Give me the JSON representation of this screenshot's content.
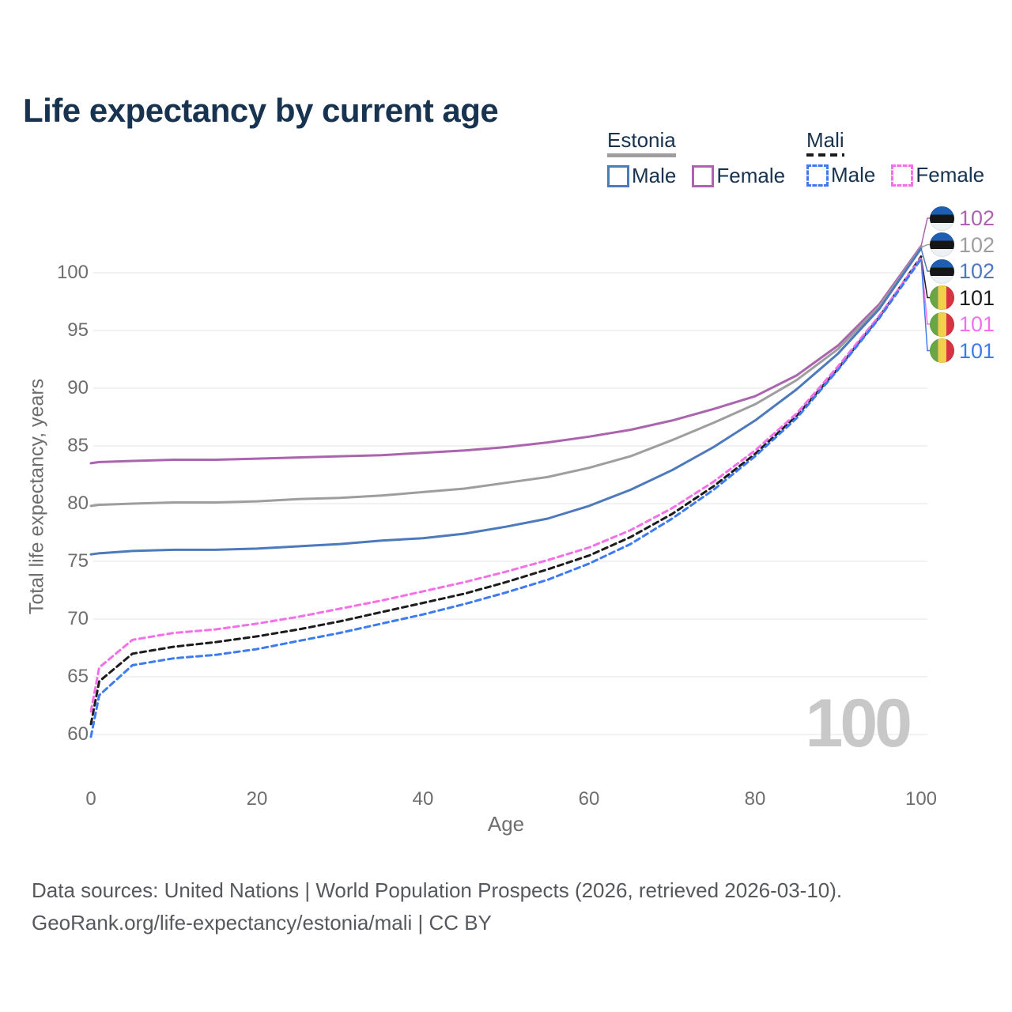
{
  "title": "Life expectancy by current age",
  "watermark": "100",
  "legend": {
    "groups": [
      {
        "country": "Estonia",
        "items": [
          {
            "label": "Male"
          },
          {
            "label": "Female"
          }
        ]
      },
      {
        "country": "Mali",
        "items": [
          {
            "label": "Male"
          },
          {
            "label": "Female"
          }
        ]
      }
    ]
  },
  "footer": {
    "line1": "Data sources: United Nations | World Population Prospects (2026, retrieved 2026-03-10).",
    "line2": "GeoRank.org/life-expectancy/estonia/mali | CC BY"
  },
  "colors": {
    "title": "#17334f",
    "axis_text": "#6e6e6e",
    "grid": "#e9e9e9",
    "watermark": "#c8c8c8",
    "footer_text": "#55595e"
  },
  "chart_data": {
    "type": "line",
    "title": "Life expectancy by current age",
    "xlabel": "Age",
    "ylabel": "Total life expectancy, years",
    "xlim": [
      0,
      100
    ],
    "ylim": [
      59,
      103
    ],
    "xticks": [
      0,
      20,
      40,
      60,
      80,
      100
    ],
    "yticks": [
      60,
      65,
      70,
      75,
      80,
      85,
      90,
      95,
      100
    ],
    "grid": "horizontal",
    "legend_position": "top-right",
    "x_ages": [
      0,
      1,
      5,
      10,
      15,
      20,
      25,
      30,
      35,
      40,
      45,
      50,
      55,
      60,
      65,
      70,
      75,
      80,
      85,
      90,
      95,
      100
    ],
    "series": [
      {
        "id": "estonia-female",
        "name": "Estonia Female",
        "country": "Estonia",
        "sex": "Female",
        "color": "#ab64ae",
        "dashed": false,
        "flag": "estonia",
        "end_label": "102",
        "values": [
          83.5,
          83.6,
          83.7,
          83.8,
          83.8,
          83.9,
          84.0,
          84.1,
          84.2,
          84.4,
          84.6,
          84.9,
          85.3,
          85.8,
          86.4,
          87.2,
          88.2,
          89.3,
          91.1,
          93.7,
          97.3,
          102.3
        ]
      },
      {
        "id": "estonia-total",
        "name": "Estonia Both sexes",
        "country": "Estonia",
        "sex": "All",
        "color": "#9e9e9e",
        "dashed": false,
        "flag": "estonia",
        "end_label": "102",
        "values": [
          79.8,
          79.9,
          80.0,
          80.1,
          80.1,
          80.2,
          80.4,
          80.5,
          80.7,
          81.0,
          81.3,
          81.8,
          82.3,
          83.1,
          84.1,
          85.5,
          87.0,
          88.6,
          90.7,
          93.4,
          97.1,
          102.2
        ]
      },
      {
        "id": "estonia-male",
        "name": "Estonia Male",
        "country": "Estonia",
        "sex": "Male",
        "color": "#4d79bd",
        "dashed": false,
        "flag": "estonia",
        "end_label": "102",
        "values": [
          75.6,
          75.7,
          75.9,
          76.0,
          76.0,
          76.1,
          76.3,
          76.5,
          76.8,
          77.0,
          77.4,
          78.0,
          78.7,
          79.8,
          81.2,
          82.9,
          84.9,
          87.2,
          89.9,
          93.0,
          96.9,
          102.1
        ]
      },
      {
        "id": "mali-total",
        "name": "Mali Both sexes",
        "country": "Mali",
        "sex": "All",
        "color": "#1c1c1c",
        "dashed": true,
        "flag": "mali",
        "end_label": "101",
        "values": [
          60.9,
          64.6,
          67.0,
          67.6,
          68.0,
          68.5,
          69.1,
          69.8,
          70.6,
          71.4,
          72.2,
          73.2,
          74.3,
          75.5,
          77.1,
          79.1,
          81.5,
          84.3,
          87.6,
          91.7,
          96.2,
          101.4
        ]
      },
      {
        "id": "mali-female",
        "name": "Mali Female",
        "country": "Mali",
        "sex": "Female",
        "color": "#f470e8",
        "dashed": true,
        "flag": "mali",
        "end_label": "101",
        "values": [
          62.0,
          65.8,
          68.2,
          68.8,
          69.1,
          69.6,
          70.2,
          70.9,
          71.6,
          72.4,
          73.2,
          74.1,
          75.1,
          76.2,
          77.7,
          79.6,
          81.9,
          84.6,
          87.8,
          91.9,
          96.3,
          101.3
        ]
      },
      {
        "id": "mali-male",
        "name": "Mali Male",
        "country": "Mali",
        "sex": "Male",
        "color": "#3d7bef",
        "dashed": true,
        "flag": "mali",
        "end_label": "101",
        "values": [
          59.8,
          63.4,
          66.0,
          66.6,
          66.9,
          67.4,
          68.1,
          68.8,
          69.6,
          70.4,
          71.3,
          72.3,
          73.4,
          74.8,
          76.5,
          78.7,
          81.2,
          84.1,
          87.4,
          91.6,
          96.1,
          101.2
        ]
      }
    ]
  }
}
